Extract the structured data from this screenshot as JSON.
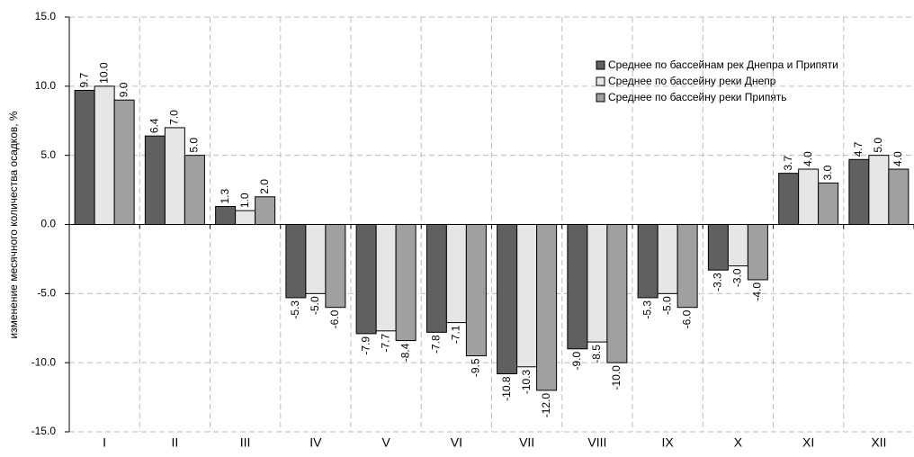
{
  "chart_data": {
    "type": "bar",
    "y_label": "изменение месячного количества осадков, %",
    "categories": [
      "I",
      "II",
      "III",
      "IV",
      "V",
      "VI",
      "VII",
      "VIII",
      "IX",
      "X",
      "XI",
      "XII"
    ],
    "series": [
      {
        "name": "Среднее по бассейнам рек Днепра и Припяти",
        "color": "#606060",
        "values": [
          9.7,
          6.4,
          1.3,
          -5.3,
          -7.9,
          -7.8,
          -10.8,
          -9.0,
          -5.3,
          -3.3,
          3.7,
          4.7
        ],
        "value_labels": [
          "9.7",
          "6.4",
          "1.3",
          "-5.3",
          "-7.9",
          "-7.8",
          "-10.8",
          "-9.0",
          "-5.3",
          "-3.3",
          "3.7",
          "4.7"
        ]
      },
      {
        "name": "Среднее по бассейну реки Днепр",
        "color": "#e6e6e6",
        "values": [
          10,
          7,
          1,
          -5,
          -7.7,
          -7.1,
          -10.3,
          -8.5,
          -5,
          -3,
          4,
          5
        ],
        "value_labels": [
          "10.0",
          "7.0",
          "1.0",
          "-5.0",
          "-7.7",
          "-7.1",
          "-10.3",
          "-8.5",
          "-5.0",
          "-3.0",
          "4.0",
          "5.0"
        ]
      },
      {
        "name": "Среднее по бассейну реки Припять",
        "color": "#a0a0a0",
        "values": [
          9,
          5,
          2,
          -6,
          -8.4,
          -9.5,
          -12,
          -10,
          -6,
          -4,
          3,
          4
        ],
        "value_labels": [
          "9.0",
          "5.0",
          "2.0",
          "-6.0",
          "-8.4",
          "-9.5",
          "-12.0",
          "-10.0",
          "-6.0",
          "-4.0",
          "3.0",
          "4.0"
        ]
      }
    ],
    "ylim": [
      -15,
      15
    ],
    "yticks": [
      {
        "value": -15,
        "label": "-15.0"
      },
      {
        "value": -10,
        "label": "-10.0"
      },
      {
        "value": -5,
        "label": "-5.0"
      },
      {
        "value": 0,
        "label": "0.0"
      },
      {
        "value": 5,
        "label": "5.0"
      },
      {
        "value": 10,
        "label": "10.0"
      },
      {
        "value": 15,
        "label": "15.0"
      }
    ],
    "grid": true,
    "legend": "upper right"
  }
}
